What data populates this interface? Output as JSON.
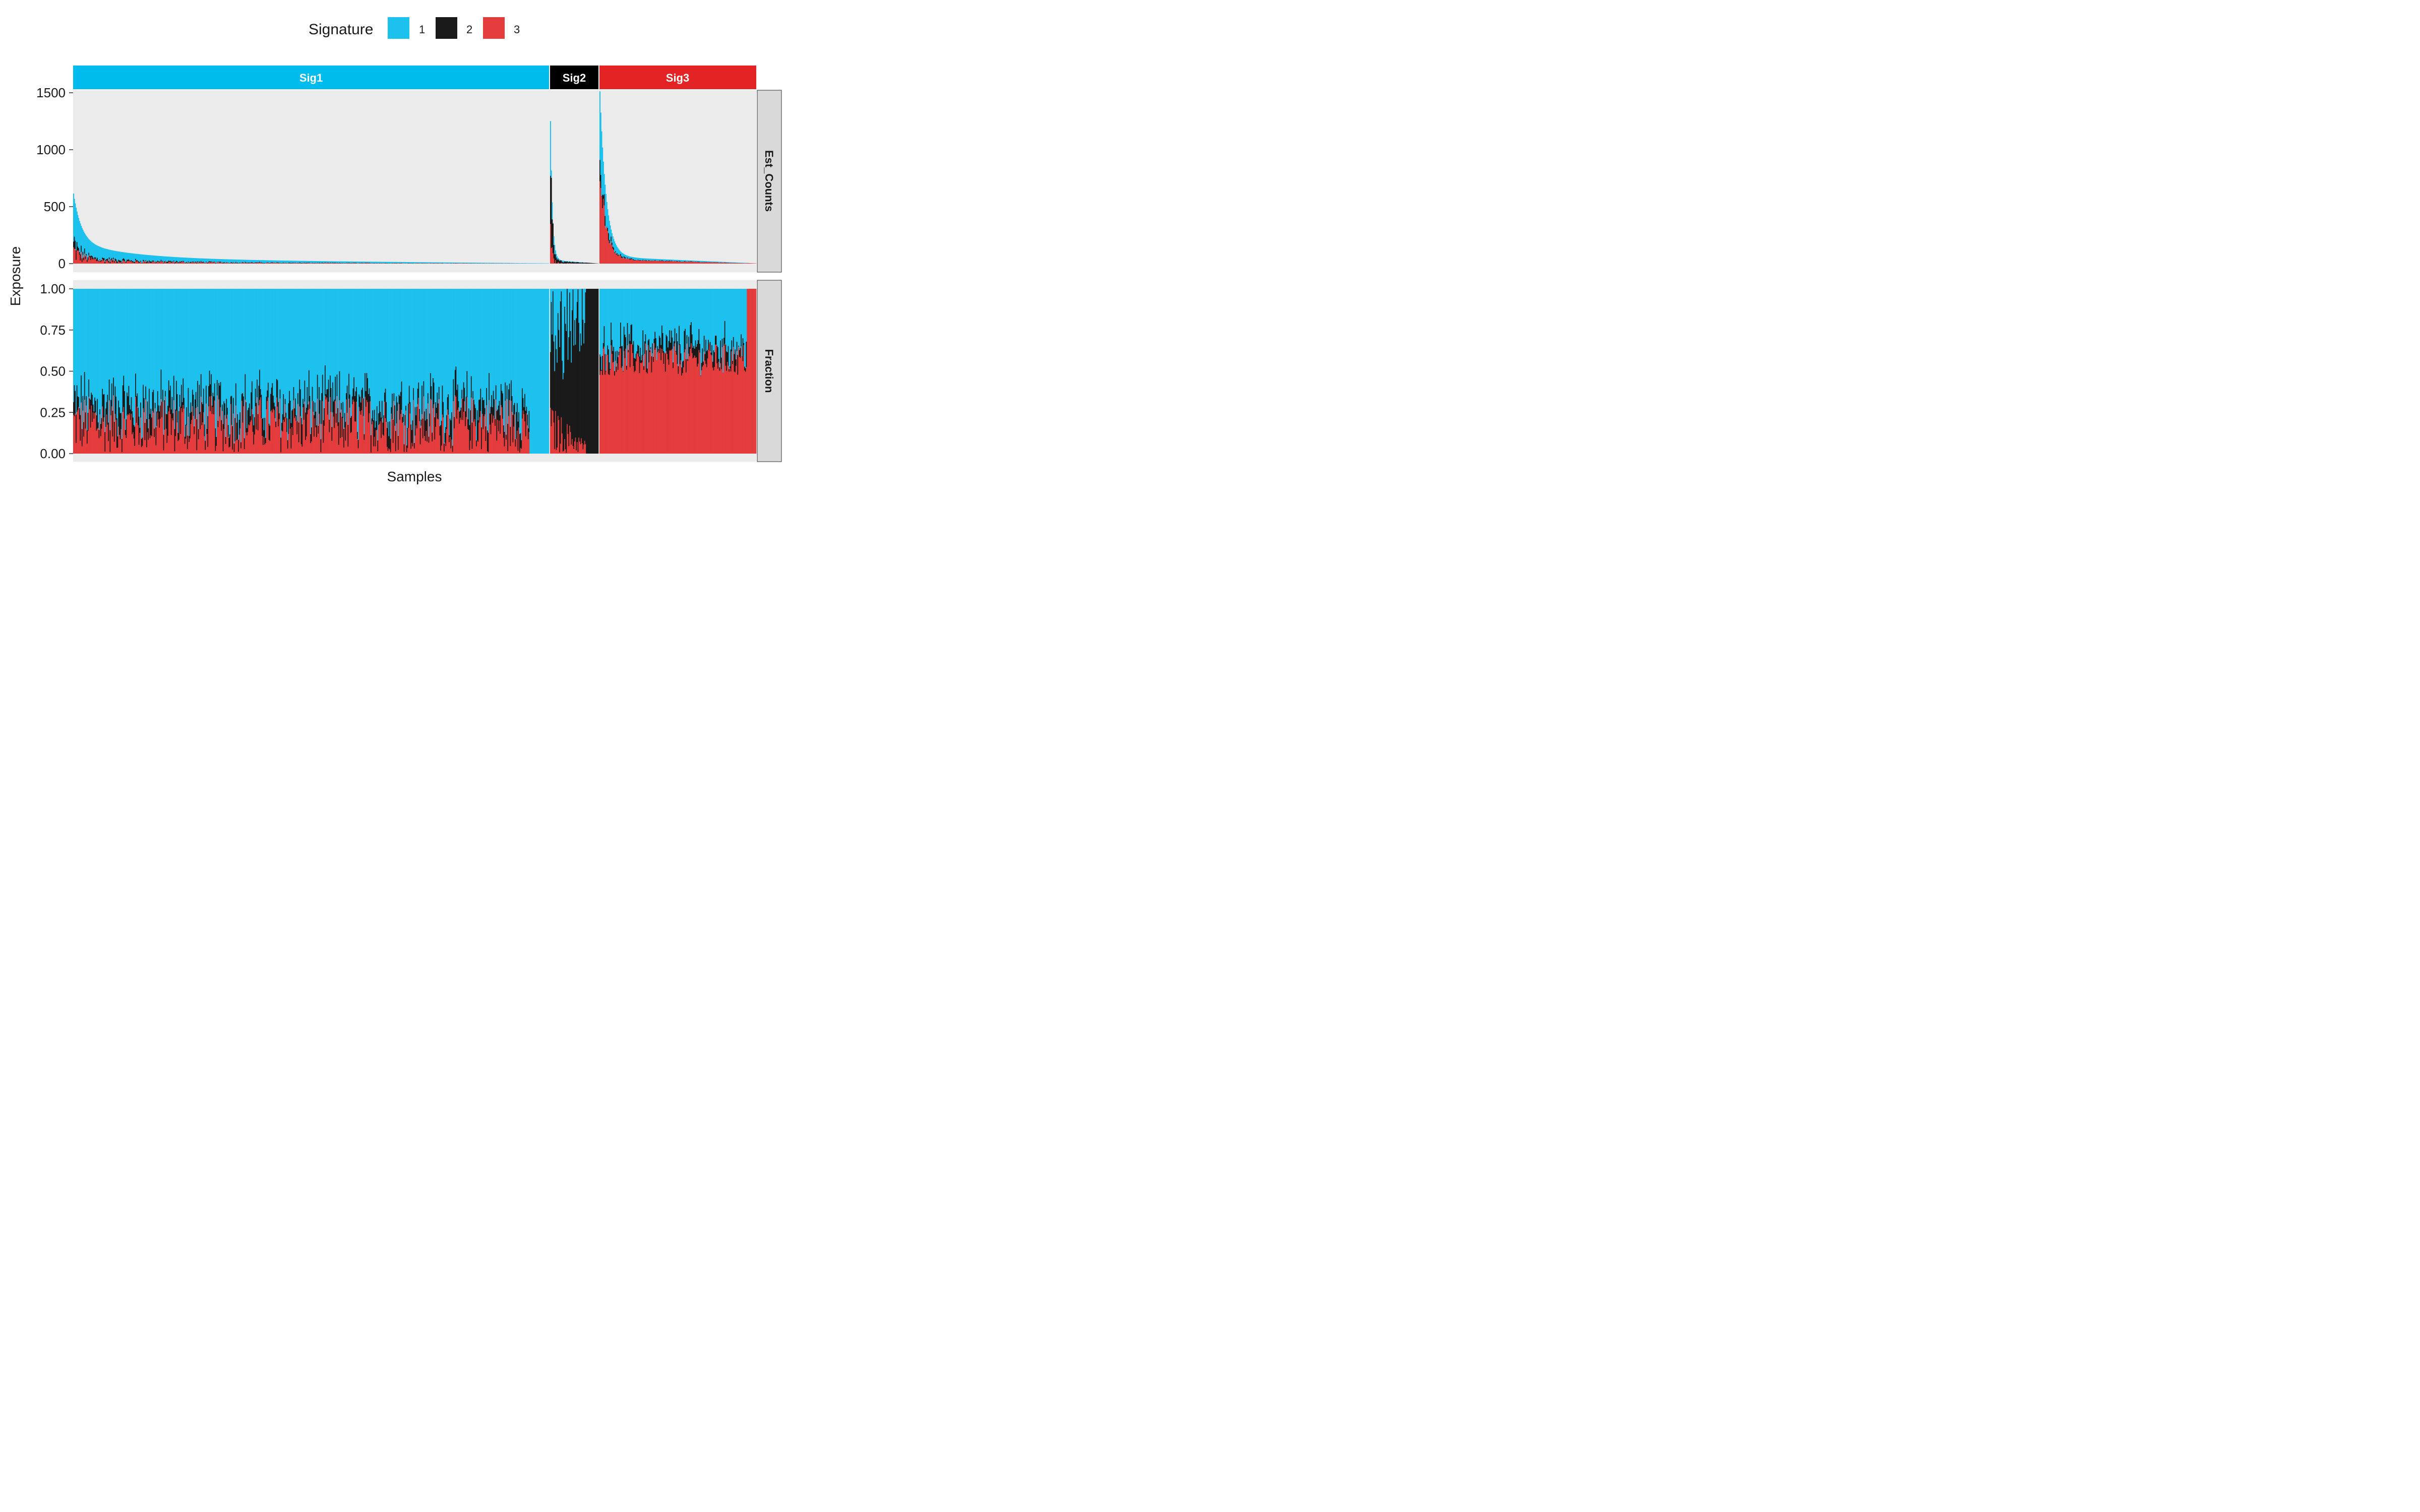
{
  "chart_data": {
    "type": "bar",
    "stacked": true,
    "legend": {
      "title": "Signature",
      "position": "top",
      "entries": [
        {
          "label": "1",
          "color": "#1CC1EE"
        },
        {
          "label": "2",
          "color": "#1A1A1A"
        },
        {
          "label": "3",
          "color": "#E43C3C"
        }
      ]
    },
    "groups": [
      {
        "label": "Sig1",
        "color": "#00BCEE",
        "text_color": "#ffffff",
        "n_samples": 560
      },
      {
        "label": "Sig2",
        "color": "#000000",
        "text_color": "#ffffff",
        "n_samples": 58
      },
      {
        "label": "Sig3",
        "color": "#E42424",
        "text_color": "#ffffff",
        "n_samples": 182
      }
    ],
    "panels": [
      {
        "label": "Est_Counts",
        "ylim": [
          0,
          1520
        ],
        "yticks": [
          0,
          500,
          1000,
          1500
        ],
        "ytick_labels": [
          "0",
          "500",
          "1000",
          "1500"
        ],
        "summary": {
          "Sig1": {
            "max_total": 610,
            "typical_total": 60,
            "min_total": 2
          },
          "Sig2": {
            "max_total": 1220,
            "typical_total": 30,
            "min_total": 1
          },
          "Sig3": {
            "max_total": 1450,
            "typical_total": 60,
            "min_total": 2
          }
        }
      },
      {
        "label": "Fraction",
        "ylim": [
          0,
          1
        ],
        "yticks": [
          0,
          0.25,
          0.5,
          0.75,
          1
        ],
        "ytick_labels": [
          "0.00",
          "0.25",
          "0.50",
          "0.75",
          "1.00"
        ],
        "summary": {
          "Sig1": {
            "sig1_mean": 0.72,
            "sig2_mean": 0.1,
            "sig3_mean": 0.18
          },
          "Sig2": {
            "sig1_mean": 0.3,
            "sig2_mean": 0.55,
            "sig3_mean": 0.15
          },
          "Sig3": {
            "sig1_mean": 0.35,
            "sig2_mean": 0.08,
            "sig3_mean": 0.57
          }
        }
      }
    ],
    "xlabel": "Samples",
    "ylabel": "Exposure",
    "grid": true,
    "panel_background": "#EBEBEB"
  }
}
